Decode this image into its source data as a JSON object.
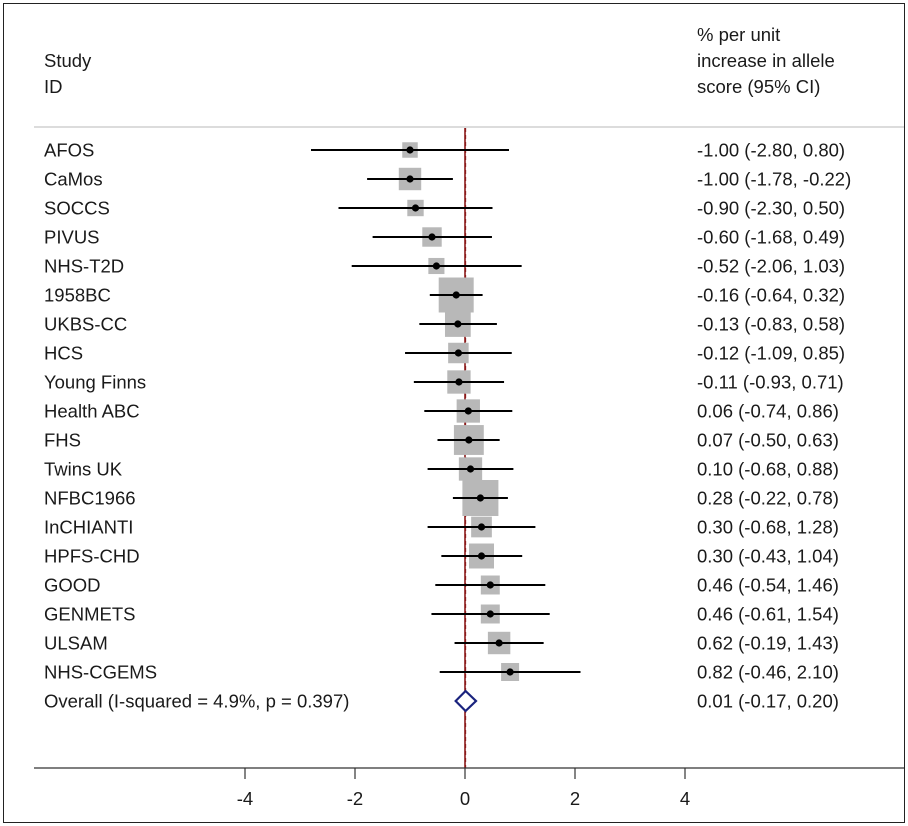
{
  "header": {
    "study_lines": [
      "Study",
      "ID"
    ],
    "estimate_lines": [
      "% per unit",
      "increase in allele",
      "score (95% CI)"
    ]
  },
  "colors": {
    "box": "#b8b8b8",
    "point": "#000000",
    "ci_line": "#000000",
    "reference_line": "#8b1a1a",
    "diamond": "#1a237e",
    "axis": "#333333"
  },
  "chart_data": {
    "type": "forest",
    "xlim": [
      -5.5,
      7.5
    ],
    "xticks": [
      -4,
      -2,
      0,
      2,
      4
    ],
    "reference_value": 0,
    "studies": [
      {
        "label": "AFOS",
        "estimate": -1.0,
        "lower": -2.8,
        "upper": 0.8,
        "ci_text": "-1.00 (-2.80, 0.80)",
        "weight": 1.5
      },
      {
        "label": "CaMos",
        "estimate": -1.0,
        "lower": -1.78,
        "upper": -0.22,
        "ci_text": "-1.00 (-1.78, -0.22)",
        "weight": 4.5
      },
      {
        "label": "SOCCS",
        "estimate": -0.9,
        "lower": -2.3,
        "upper": 0.5,
        "ci_text": "-0.90 (-2.30, 0.50)",
        "weight": 1.8
      },
      {
        "label": "PIVUS",
        "estimate": -0.6,
        "lower": -1.68,
        "upper": 0.49,
        "ci_text": "-0.60 (-1.68, 0.49)",
        "weight": 3.0
      },
      {
        "label": "NHS-T2D",
        "estimate": -0.52,
        "lower": -2.06,
        "upper": 1.03,
        "ci_text": "-0.52 (-2.06, 1.03)",
        "weight": 1.7
      },
      {
        "label": "1958BC",
        "estimate": -0.16,
        "lower": -0.64,
        "upper": 0.32,
        "ci_text": "-0.16 (-0.64, 0.32)",
        "weight": 14
      },
      {
        "label": "UKBS-CC",
        "estimate": -0.13,
        "lower": -0.83,
        "upper": 0.58,
        "ci_text": "-0.13 (-0.83, 0.58)",
        "weight": 6.5
      },
      {
        "label": "HCS",
        "estimate": -0.12,
        "lower": -1.09,
        "upper": 0.85,
        "ci_text": "-0.12 (-1.09, 0.85)",
        "weight": 3.5
      },
      {
        "label": "Young Finns",
        "estimate": -0.11,
        "lower": -0.93,
        "upper": 0.71,
        "ci_text": "-0.11 (-0.93, 0.71)",
        "weight": 5.0
      },
      {
        "label": "Health ABC",
        "estimate": 0.06,
        "lower": -0.74,
        "upper": 0.86,
        "ci_text": "0.06 (-0.74, 0.86)",
        "weight": 5.0
      },
      {
        "label": "FHS",
        "estimate": 0.07,
        "lower": -0.5,
        "upper": 0.63,
        "ci_text": "0.07 (-0.50, 0.63)",
        "weight": 9.5
      },
      {
        "label": "Twins UK",
        "estimate": 0.1,
        "lower": -0.68,
        "upper": 0.88,
        "ci_text": "0.10 (-0.68, 0.88)",
        "weight": 5.0
      },
      {
        "label": "NFBC1966",
        "estimate": 0.28,
        "lower": -0.22,
        "upper": 0.78,
        "ci_text": "0.28 (-0.22, 0.78)",
        "weight": 15
      },
      {
        "label": "InCHIANTI",
        "estimate": 0.3,
        "lower": -0.68,
        "upper": 1.28,
        "ci_text": "0.30 (-0.68, 1.28)",
        "weight": 3.6
      },
      {
        "label": "HPFS-CHD",
        "estimate": 0.3,
        "lower": -0.43,
        "upper": 1.04,
        "ci_text": "0.30 (-0.43, 1.04)",
        "weight": 6.0
      },
      {
        "label": "GOOD",
        "estimate": 0.46,
        "lower": -0.54,
        "upper": 1.46,
        "ci_text": "0.46 (-0.54, 1.46)",
        "weight": 2.8
      },
      {
        "label": "GENMETS",
        "estimate": 0.46,
        "lower": -0.61,
        "upper": 1.54,
        "ci_text": "0.46 (-0.61, 1.54)",
        "weight": 2.8
      },
      {
        "label": "ULSAM",
        "estimate": 0.62,
        "lower": -0.19,
        "upper": 1.43,
        "ci_text": "0.62 (-0.19, 1.43)",
        "weight": 4.5
      },
      {
        "label": "NHS-CGEMS",
        "estimate": 0.82,
        "lower": -0.46,
        "upper": 2.1,
        "ci_text": "0.82 (-0.46, 2.10)",
        "weight": 2.4
      }
    ],
    "overall": {
      "label": "Overall  (I-squared = 4.9%, p = 0.397)",
      "estimate": 0.01,
      "lower": -0.17,
      "upper": 0.2,
      "ci_text": "0.01 (-0.17, 0.20)"
    }
  }
}
